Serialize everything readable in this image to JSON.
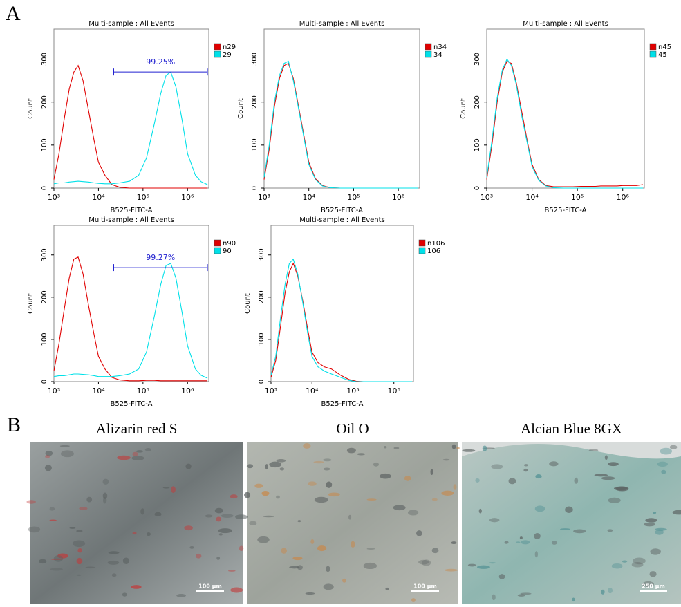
{
  "panel_a": {
    "label": "A"
  },
  "panel_b": {
    "label": "B",
    "images": [
      {
        "title": "Alizarin red S",
        "scale_bar": "100 µm"
      },
      {
        "title": "Oil O",
        "scale_bar": "100 µm"
      },
      {
        "title": "Alcian Blue 8GX",
        "scale_bar": "250 µm"
      }
    ]
  },
  "chart_data": [
    {
      "type": "line",
      "title": "Multi-sample : All Events",
      "x_label": "B525-FITC-A",
      "y_label": "Count",
      "log_x": true,
      "x": [
        1000,
        1300,
        1700,
        2200,
        2800,
        3500,
        4500,
        6000,
        8000,
        10000,
        14000,
        20000,
        30000,
        50000,
        80000,
        120000,
        180000,
        250000,
        330000,
        420000,
        550000,
        750000,
        1000000,
        1500000,
        2000000,
        2800000
      ],
      "xlim": [
        1000,
        3000000
      ],
      "ylim": [
        0,
        370
      ],
      "xticks": [
        {
          "value": 1000,
          "label": "10³"
        },
        {
          "value": 10000,
          "label": "10⁴"
        },
        {
          "value": 100000,
          "label": "10⁵"
        },
        {
          "value": 1000000,
          "label": "10⁶"
        }
      ],
      "yticks": [
        0,
        100,
        200,
        300
      ],
      "gate": {
        "label": "99.25%",
        "x": [
          22000,
          2800000
        ],
        "y": 270
      },
      "series": [
        {
          "name": "n29",
          "color": "#e00000",
          "values": [
            20,
            80,
            160,
            230,
            270,
            285,
            250,
            180,
            110,
            60,
            30,
            8,
            2,
            0,
            0,
            0,
            0,
            0,
            0,
            0,
            0,
            0,
            0,
            0,
            0,
            0
          ]
        },
        {
          "name": "29",
          "color": "#00e0e8",
          "values": [
            10,
            12,
            12,
            14,
            15,
            16,
            15,
            14,
            12,
            11,
            10,
            10,
            12,
            16,
            30,
            70,
            150,
            220,
            262,
            270,
            235,
            160,
            80,
            30,
            15,
            8
          ]
        }
      ]
    },
    {
      "type": "line",
      "title": "Multi-sample : All Events",
      "x_label": "B525-FITC-A",
      "y_label": "Count",
      "log_x": true,
      "x": [
        1000,
        1300,
        1700,
        2200,
        2800,
        3500,
        4500,
        6000,
        8000,
        10000,
        14000,
        20000,
        30000,
        50000,
        80000,
        120000,
        180000,
        250000,
        330000,
        420000,
        550000,
        750000,
        1000000,
        1500000,
        2000000,
        2800000
      ],
      "xlim": [
        1000,
        3000000
      ],
      "ylim": [
        0,
        370
      ],
      "xticks": [
        {
          "value": 1000,
          "label": "10³"
        },
        {
          "value": 10000,
          "label": "10⁴"
        },
        {
          "value": 100000,
          "label": "10⁵"
        },
        {
          "value": 1000000,
          "label": "10⁶"
        }
      ],
      "yticks": [
        0,
        100,
        200,
        300
      ],
      "series": [
        {
          "name": "n34",
          "color": "#e00000",
          "values": [
            20,
            90,
            190,
            255,
            285,
            290,
            255,
            185,
            115,
            60,
            22,
            6,
            1,
            0,
            0,
            0,
            0,
            0,
            0,
            0,
            0,
            0,
            0,
            0,
            0,
            0
          ]
        },
        {
          "name": "34",
          "color": "#00e0e8",
          "values": [
            25,
            100,
            200,
            262,
            290,
            295,
            250,
            180,
            110,
            55,
            20,
            5,
            1,
            0,
            0,
            0,
            0,
            0,
            0,
            0,
            0,
            0,
            0,
            0,
            0,
            0
          ]
        }
      ]
    },
    {
      "type": "line",
      "title": "Multi-sample : All Events",
      "x_label": "B525-FITC-A",
      "y_label": "Count",
      "log_x": true,
      "x": [
        1000,
        1300,
        1700,
        2200,
        2800,
        3500,
        4500,
        6000,
        8000,
        10000,
        14000,
        20000,
        30000,
        50000,
        80000,
        120000,
        180000,
        250000,
        330000,
        420000,
        550000,
        750000,
        1000000,
        1500000,
        2000000,
        2800000
      ],
      "xlim": [
        1000,
        3000000
      ],
      "ylim": [
        0,
        370
      ],
      "xticks": [
        {
          "value": 1000,
          "label": "10³"
        },
        {
          "value": 10000,
          "label": "10⁴"
        },
        {
          "value": 100000,
          "label": "10⁵"
        },
        {
          "value": 1000000,
          "label": "10⁶"
        }
      ],
      "yticks": [
        0,
        100,
        200,
        300
      ],
      "series": [
        {
          "name": "n45",
          "color": "#e00000",
          "values": [
            20,
            100,
            200,
            270,
            295,
            290,
            245,
            175,
            105,
            55,
            20,
            6,
            3,
            3,
            3,
            4,
            4,
            4,
            5,
            5,
            5,
            5,
            6,
            6,
            6,
            8
          ]
        },
        {
          "name": "45",
          "color": "#00e0e8",
          "values": [
            25,
            110,
            210,
            275,
            300,
            285,
            240,
            165,
            100,
            50,
            18,
            5,
            1,
            0,
            0,
            0,
            0,
            0,
            0,
            0,
            0,
            0,
            0,
            0,
            0,
            0
          ]
        }
      ]
    },
    {
      "type": "line",
      "title": "Multi-sample : All Events",
      "x_label": "B525-FITC-A",
      "y_label": "Count",
      "log_x": true,
      "x": [
        1000,
        1300,
        1700,
        2200,
        2800,
        3500,
        4500,
        6000,
        8000,
        10000,
        14000,
        20000,
        30000,
        50000,
        80000,
        120000,
        180000,
        250000,
        330000,
        420000,
        550000,
        750000,
        1000000,
        1500000,
        2000000,
        2800000
      ],
      "xlim": [
        1000,
        3000000
      ],
      "ylim": [
        0,
        370
      ],
      "xticks": [
        {
          "value": 1000,
          "label": "10³"
        },
        {
          "value": 10000,
          "label": "10⁴"
        },
        {
          "value": 100000,
          "label": "10⁵"
        },
        {
          "value": 1000000,
          "label": "10⁶"
        }
      ],
      "yticks": [
        0,
        100,
        200,
        300
      ],
      "gate": {
        "label": "99.27%",
        "x": [
          22000,
          2800000
        ],
        "y": 270
      },
      "series": [
        {
          "name": "n90",
          "color": "#e00000",
          "values": [
            25,
            90,
            170,
            245,
            290,
            295,
            255,
            180,
            110,
            60,
            30,
            10,
            4,
            2,
            2,
            3,
            3,
            2,
            2,
            2,
            2,
            2,
            2,
            2,
            2,
            2
          ]
        },
        {
          "name": "90",
          "color": "#00e0e8",
          "values": [
            12,
            14,
            14,
            16,
            18,
            18,
            17,
            16,
            14,
            12,
            12,
            12,
            14,
            18,
            30,
            70,
            155,
            230,
            275,
            280,
            245,
            165,
            85,
            30,
            15,
            8
          ]
        }
      ]
    },
    {
      "type": "line",
      "title": "Multi-sample : All Events",
      "x_label": "B525-FITC-A",
      "y_label": "Count",
      "log_x": true,
      "x": [
        1000,
        1300,
        1700,
        2200,
        2800,
        3500,
        4500,
        6000,
        8000,
        10000,
        14000,
        20000,
        30000,
        50000,
        80000,
        120000,
        180000,
        250000,
        330000,
        420000,
        550000,
        750000,
        1000000,
        1500000,
        2000000,
        2800000
      ],
      "xlim": [
        1000,
        3000000
      ],
      "ylim": [
        0,
        370
      ],
      "xticks": [
        {
          "value": 1000,
          "label": "10³"
        },
        {
          "value": 10000,
          "label": "10⁴"
        },
        {
          "value": 100000,
          "label": "10⁵"
        },
        {
          "value": 1000000,
          "label": "10⁶"
        }
      ],
      "yticks": [
        0,
        100,
        200,
        300
      ],
      "series": [
        {
          "name": "n106",
          "color": "#e00000",
          "values": [
            10,
            50,
            130,
            210,
            260,
            280,
            250,
            190,
            120,
            70,
            45,
            35,
            30,
            15,
            5,
            1,
            0,
            0,
            0,
            0,
            0,
            0,
            0,
            0,
            0,
            0
          ]
        },
        {
          "name": "106",
          "color": "#00e0e8",
          "values": [
            15,
            60,
            150,
            230,
            280,
            290,
            255,
            185,
            110,
            60,
            35,
            25,
            18,
            10,
            3,
            0,
            0,
            0,
            0,
            0,
            0,
            0,
            0,
            0,
            0,
            0
          ]
        }
      ]
    }
  ]
}
